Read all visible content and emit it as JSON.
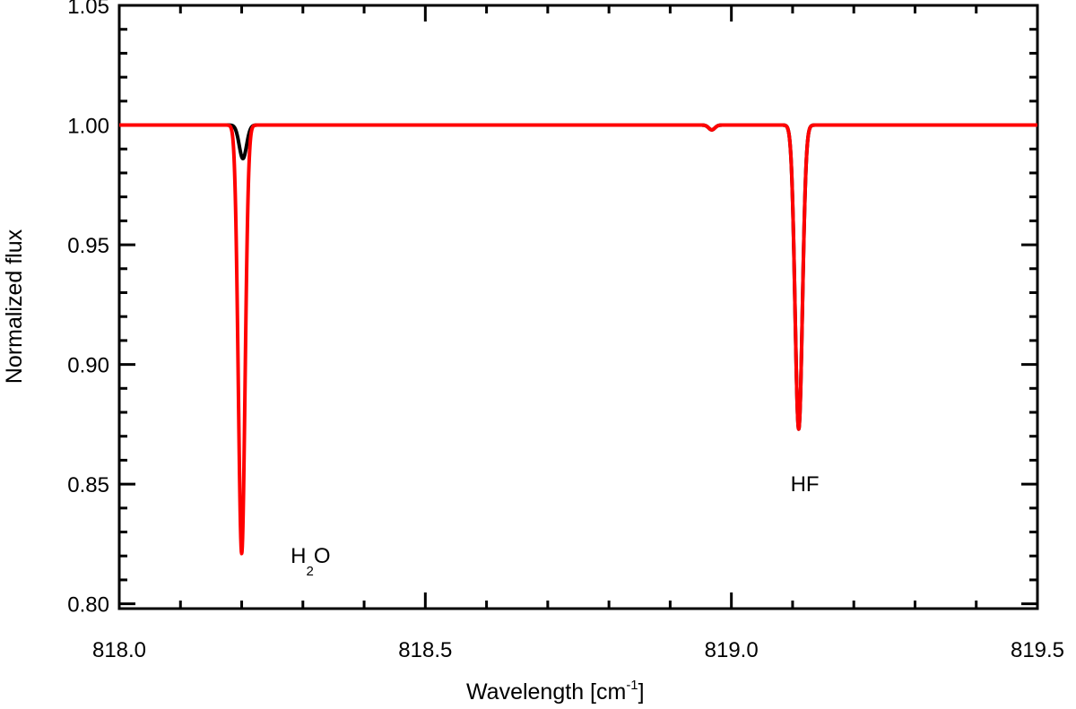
{
  "chart_data": {
    "type": "line",
    "title": "",
    "xlabel": "Wavelength [cm",
    "xlabel_sup": "-1",
    "xlabel_end": "]",
    "ylabel": "Normalized flux",
    "xlim": [
      818.0,
      819.5
    ],
    "ylim": [
      0.798,
      1.05
    ],
    "x_ticks": [
      818.0,
      818.5,
      819.0,
      819.5
    ],
    "x_tick_labels": [
      "818.0",
      "818.5",
      "819.0",
      "819.5"
    ],
    "y_ticks": [
      0.8,
      0.85,
      0.9,
      0.95,
      1.0,
      1.05
    ],
    "y_tick_labels": [
      "0.80",
      "0.85",
      "0.90",
      "0.95",
      "1.00",
      "1.05"
    ],
    "grid": false,
    "series": [
      {
        "color": "#000000",
        "baseline": 1.0,
        "absorption_lines": [
          {
            "center": 818.202,
            "depth": 0.014,
            "width": 0.006
          },
          {
            "center": 818.968,
            "depth": 0.002,
            "width": 0.005
          },
          {
            "center": 819.11,
            "depth": 0.127,
            "width": 0.006
          }
        ]
      },
      {
        "color": "#ff0000",
        "baseline": 1.0,
        "absorption_lines": [
          {
            "center": 818.2,
            "depth": 0.179,
            "width": 0.0055
          },
          {
            "center": 818.968,
            "depth": 0.002,
            "width": 0.005
          },
          {
            "center": 819.11,
            "depth": 0.127,
            "width": 0.006
          }
        ]
      }
    ],
    "annotations": [
      {
        "text": "H",
        "sub": "2",
        "after": "O",
        "x": 818.28,
        "y": 0.82
      },
      {
        "text": "HF",
        "x": 819.12,
        "y": 0.85
      }
    ]
  }
}
